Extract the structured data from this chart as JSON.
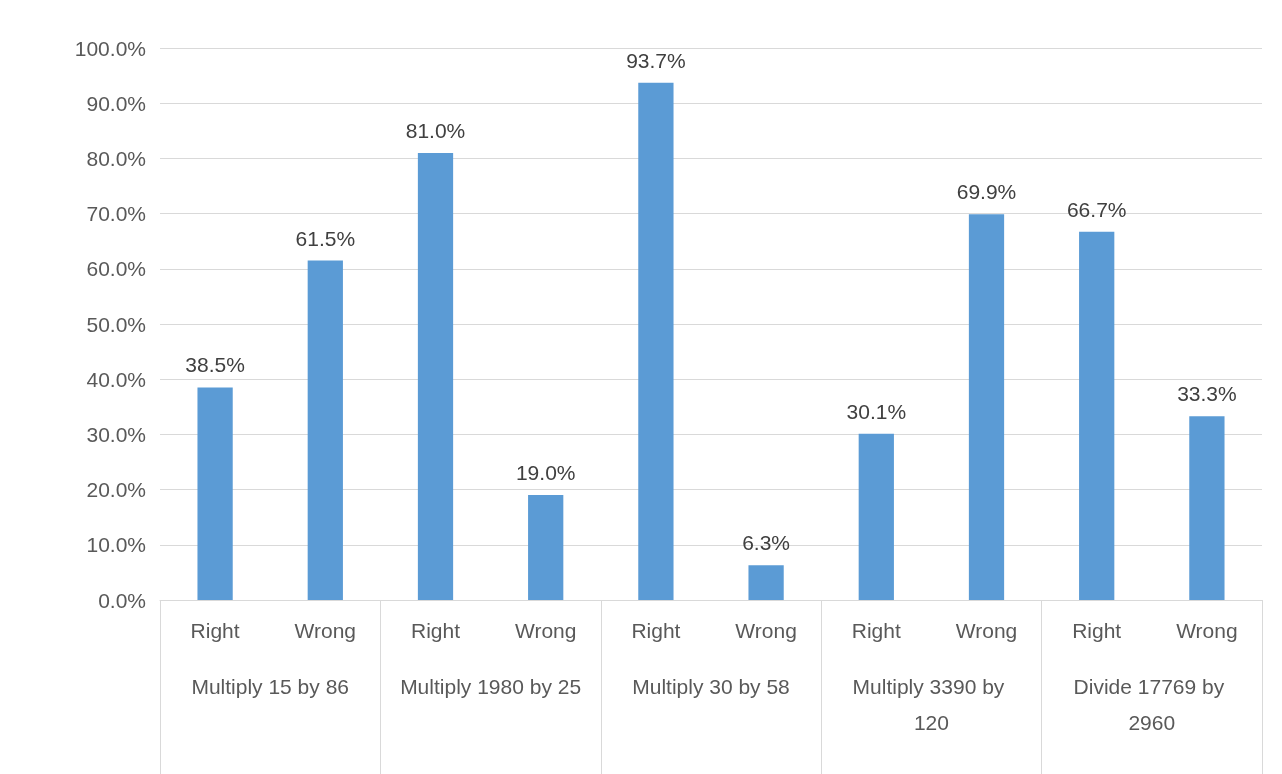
{
  "chart_data": {
    "type": "bar",
    "categories": [
      "Right",
      "Wrong",
      "Right",
      "Wrong",
      "Right",
      "Wrong",
      "Right",
      "Wrong",
      "Right",
      "Wrong"
    ],
    "values": [
      38.5,
      61.5,
      81.0,
      19.0,
      93.7,
      6.3,
      30.1,
      69.9,
      66.7,
      33.3
    ],
    "value_labels": [
      "38.5%",
      "61.5%",
      "81.0%",
      "19.0%",
      "93.7%",
      "6.3%",
      "30.1%",
      "69.9%",
      "66.7%",
      "33.3%"
    ],
    "color": "#5b9bd5",
    "ylim": [
      0,
      100
    ],
    "yticks": [
      {
        "value": 0,
        "label": "0.0%"
      },
      {
        "value": 10,
        "label": "10.0%"
      },
      {
        "value": 20,
        "label": "20.0%"
      },
      {
        "value": 30,
        "label": "30.0%"
      },
      {
        "value": 40,
        "label": "40.0%"
      },
      {
        "value": 50,
        "label": "50.0%"
      },
      {
        "value": 60,
        "label": "60.0%"
      },
      {
        "value": 70,
        "label": "70.0%"
      },
      {
        "value": 80,
        "label": "80.0%"
      },
      {
        "value": 90,
        "label": "90.0%"
      },
      {
        "value": 100,
        "label": "100.0%"
      }
    ],
    "grid": "y",
    "annotations": [
      "Multiply 15 by 86",
      "Multiply 1980 by 25",
      "Multiply 30 by 58",
      "Multiply 3390 by 120",
      "Divide 17769 by 2960"
    ]
  }
}
